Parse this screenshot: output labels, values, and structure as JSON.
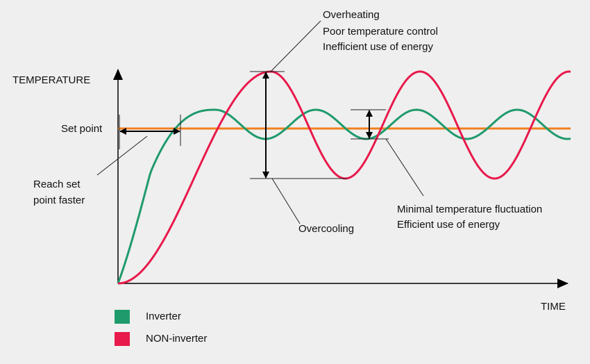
{
  "axes": {
    "y_label": "TEMPERATURE",
    "x_label": "TIME"
  },
  "set_point": "Set point",
  "annotations": {
    "overheating": [
      "Overheating",
      "Poor temperature control",
      "Inefficient use of energy"
    ],
    "reach": [
      "Reach set",
      "point faster"
    ],
    "overcooling": "Overcooling",
    "minimal": [
      "Minimal temperature fluctuation",
      "Efficient use of energy"
    ]
  },
  "legend": [
    {
      "name": "Inverter",
      "color": "#1f9a6c"
    },
    {
      "name": "NON-inverter",
      "color": "#e8194b"
    }
  ]
}
